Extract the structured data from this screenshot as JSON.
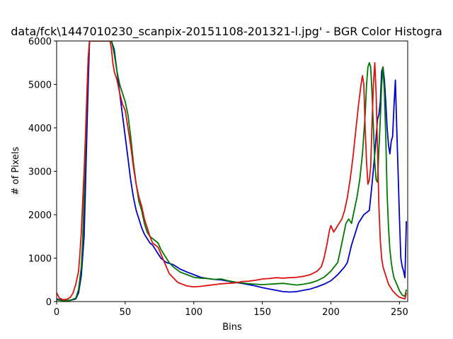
{
  "chart_data": {
    "type": "line",
    "title": "data/fck\\1447010230_scanpix-20151108-201321-l.jpg' - BGR Color Histogra",
    "xlabel": "Bins",
    "ylabel": "# of Pixels",
    "xlim": [
      0,
      256
    ],
    "ylim": [
      0,
      6000
    ],
    "xticks": [
      0,
      50,
      100,
      150,
      200,
      250
    ],
    "yticks": [
      0,
      1000,
      2000,
      3000,
      4000,
      5000,
      6000
    ],
    "grid": false,
    "legend": "none",
    "series": [
      {
        "color": "#0000cc",
        "points": [
          [
            0,
            60
          ],
          [
            5,
            20
          ],
          [
            10,
            30
          ],
          [
            14,
            60
          ],
          [
            16,
            200
          ],
          [
            18,
            600
          ],
          [
            20,
            1500
          ],
          [
            21,
            2600
          ],
          [
            22,
            3800
          ],
          [
            23,
            5000
          ],
          [
            24,
            6000
          ],
          [
            25,
            6000
          ],
          [
            40,
            6000
          ],
          [
            42,
            5800
          ],
          [
            44,
            5300
          ],
          [
            46,
            4800
          ],
          [
            48,
            4300
          ],
          [
            50,
            3800
          ],
          [
            52,
            3300
          ],
          [
            54,
            2800
          ],
          [
            56,
            2400
          ],
          [
            58,
            2100
          ],
          [
            60,
            1900
          ],
          [
            62,
            1700
          ],
          [
            64,
            1550
          ],
          [
            66,
            1450
          ],
          [
            68,
            1350
          ],
          [
            70,
            1300
          ],
          [
            72,
            1200
          ],
          [
            74,
            1100
          ],
          [
            76,
            1000
          ],
          [
            78,
            950
          ],
          [
            80,
            900
          ],
          [
            85,
            850
          ],
          [
            90,
            750
          ],
          [
            95,
            680
          ],
          [
            100,
            620
          ],
          [
            105,
            560
          ],
          [
            110,
            530
          ],
          [
            115,
            510
          ],
          [
            120,
            500
          ],
          [
            125,
            470
          ],
          [
            130,
            440
          ],
          [
            135,
            420
          ],
          [
            140,
            390
          ],
          [
            145,
            360
          ],
          [
            150,
            320
          ],
          [
            155,
            290
          ],
          [
            160,
            260
          ],
          [
            165,
            230
          ],
          [
            170,
            220
          ],
          [
            175,
            230
          ],
          [
            180,
            260
          ],
          [
            185,
            290
          ],
          [
            190,
            340
          ],
          [
            195,
            400
          ],
          [
            200,
            480
          ],
          [
            205,
            620
          ],
          [
            210,
            800
          ],
          [
            212,
            900
          ],
          [
            215,
            1300
          ],
          [
            218,
            1600
          ],
          [
            220,
            1800
          ],
          [
            222,
            1900
          ],
          [
            224,
            2000
          ],
          [
            226,
            2050
          ],
          [
            228,
            2100
          ],
          [
            229,
            2400
          ],
          [
            230,
            2700
          ],
          [
            232,
            3400
          ],
          [
            234,
            4200
          ],
          [
            235,
            4300
          ],
          [
            236,
            4600
          ],
          [
            237,
            5300
          ],
          [
            238,
            5400
          ],
          [
            239,
            5100
          ],
          [
            240,
            4600
          ],
          [
            241,
            4000
          ],
          [
            242,
            3600
          ],
          [
            243,
            3400
          ],
          [
            244,
            3700
          ],
          [
            245,
            3800
          ],
          [
            246,
            4500
          ],
          [
            247,
            5100
          ],
          [
            248,
            4000
          ],
          [
            249,
            3000
          ],
          [
            250,
            1900
          ],
          [
            251,
            1000
          ],
          [
            252,
            800
          ],
          [
            253,
            700
          ],
          [
            254,
            550
          ],
          [
            255,
            1850
          ]
        ]
      },
      {
        "color": "#007700",
        "points": [
          [
            0,
            40
          ],
          [
            5,
            20
          ],
          [
            10,
            30
          ],
          [
            14,
            80
          ],
          [
            16,
            280
          ],
          [
            18,
            800
          ],
          [
            19,
            1400
          ],
          [
            20,
            2400
          ],
          [
            21,
            3500
          ],
          [
            22,
            4600
          ],
          [
            23,
            5600
          ],
          [
            24,
            6000
          ],
          [
            40,
            6000
          ],
          [
            42,
            5700
          ],
          [
            44,
            5300
          ],
          [
            46,
            5000
          ],
          [
            48,
            4800
          ],
          [
            50,
            4600
          ],
          [
            52,
            4300
          ],
          [
            54,
            3800
          ],
          [
            56,
            3200
          ],
          [
            58,
            2700
          ],
          [
            60,
            2300
          ],
          [
            62,
            2100
          ],
          [
            64,
            1800
          ],
          [
            66,
            1600
          ],
          [
            68,
            1500
          ],
          [
            70,
            1450
          ],
          [
            72,
            1400
          ],
          [
            74,
            1350
          ],
          [
            76,
            1200
          ],
          [
            78,
            1100
          ],
          [
            80,
            1000
          ],
          [
            82,
            900
          ],
          [
            85,
            800
          ],
          [
            90,
            680
          ],
          [
            95,
            620
          ],
          [
            100,
            560
          ],
          [
            105,
            540
          ],
          [
            110,
            530
          ],
          [
            115,
            510
          ],
          [
            120,
            520
          ],
          [
            125,
            480
          ],
          [
            130,
            450
          ],
          [
            135,
            430
          ],
          [
            140,
            410
          ],
          [
            145,
            400
          ],
          [
            150,
            390
          ],
          [
            155,
            400
          ],
          [
            160,
            410
          ],
          [
            165,
            420
          ],
          [
            170,
            400
          ],
          [
            175,
            380
          ],
          [
            180,
            400
          ],
          [
            185,
            430
          ],
          [
            190,
            480
          ],
          [
            195,
            560
          ],
          [
            200,
            700
          ],
          [
            205,
            900
          ],
          [
            207,
            1200
          ],
          [
            209,
            1500
          ],
          [
            211,
            1800
          ],
          [
            213,
            1900
          ],
          [
            215,
            1800
          ],
          [
            217,
            2100
          ],
          [
            219,
            2400
          ],
          [
            221,
            2800
          ],
          [
            223,
            3400
          ],
          [
            225,
            4300
          ],
          [
            226,
            5000
          ],
          [
            227,
            5400
          ],
          [
            228,
            5500
          ],
          [
            229,
            5400
          ],
          [
            230,
            4800
          ],
          [
            231,
            4000
          ],
          [
            232,
            3200
          ],
          [
            233,
            2800
          ],
          [
            234,
            2750
          ],
          [
            235,
            3500
          ],
          [
            236,
            4200
          ],
          [
            237,
            5000
          ],
          [
            238,
            5400
          ],
          [
            239,
            4800
          ],
          [
            240,
            3800
          ],
          [
            241,
            2500
          ],
          [
            242,
            1700
          ],
          [
            243,
            1200
          ],
          [
            244,
            900
          ],
          [
            245,
            700
          ],
          [
            246,
            550
          ],
          [
            248,
            400
          ],
          [
            250,
            250
          ],
          [
            252,
            150
          ],
          [
            254,
            120
          ],
          [
            255,
            280
          ]
        ]
      },
      {
        "color": "#dd1111",
        "points": [
          [
            0,
            200
          ],
          [
            2,
            80
          ],
          [
            5,
            40
          ],
          [
            8,
            60
          ],
          [
            10,
            100
          ],
          [
            12,
            200
          ],
          [
            14,
            400
          ],
          [
            16,
            700
          ],
          [
            17,
            1100
          ],
          [
            18,
            1600
          ],
          [
            19,
            2300
          ],
          [
            20,
            3000
          ],
          [
            21,
            3800
          ],
          [
            22,
            4700
          ],
          [
            23,
            5600
          ],
          [
            24,
            6000
          ],
          [
            39,
            6000
          ],
          [
            40,
            5800
          ],
          [
            41,
            5500
          ],
          [
            42,
            5300
          ],
          [
            44,
            5100
          ],
          [
            46,
            4800
          ],
          [
            48,
            4550
          ],
          [
            50,
            4400
          ],
          [
            52,
            4000
          ],
          [
            54,
            3600
          ],
          [
            56,
            3100
          ],
          [
            58,
            2700
          ],
          [
            60,
            2400
          ],
          [
            62,
            2200
          ],
          [
            64,
            1900
          ],
          [
            66,
            1700
          ],
          [
            68,
            1500
          ],
          [
            70,
            1350
          ],
          [
            72,
            1300
          ],
          [
            74,
            1250
          ],
          [
            76,
            1100
          ],
          [
            78,
            950
          ],
          [
            80,
            800
          ],
          [
            82,
            650
          ],
          [
            85,
            550
          ],
          [
            88,
            450
          ],
          [
            90,
            420
          ],
          [
            95,
            360
          ],
          [
            100,
            340
          ],
          [
            105,
            350
          ],
          [
            110,
            370
          ],
          [
            115,
            390
          ],
          [
            120,
            410
          ],
          [
            125,
            420
          ],
          [
            130,
            430
          ],
          [
            135,
            460
          ],
          [
            140,
            470
          ],
          [
            145,
            490
          ],
          [
            150,
            520
          ],
          [
            155,
            530
          ],
          [
            160,
            550
          ],
          [
            165,
            540
          ],
          [
            170,
            550
          ],
          [
            175,
            560
          ],
          [
            180,
            580
          ],
          [
            185,
            620
          ],
          [
            190,
            700
          ],
          [
            193,
            800
          ],
          [
            195,
            1000
          ],
          [
            197,
            1300
          ],
          [
            199,
            1650
          ],
          [
            200,
            1750
          ],
          [
            202,
            1600
          ],
          [
            204,
            1700
          ],
          [
            206,
            1800
          ],
          [
            208,
            1900
          ],
          [
            210,
            2100
          ],
          [
            212,
            2400
          ],
          [
            214,
            2800
          ],
          [
            216,
            3300
          ],
          [
            218,
            3900
          ],
          [
            220,
            4500
          ],
          [
            222,
            5000
          ],
          [
            223,
            5200
          ],
          [
            224,
            5000
          ],
          [
            225,
            4000
          ],
          [
            226,
            3200
          ],
          [
            227,
            2700
          ],
          [
            228,
            2800
          ],
          [
            229,
            3100
          ],
          [
            230,
            4100
          ],
          [
            231,
            5000
          ],
          [
            232,
            5500
          ],
          [
            233,
            4800
          ],
          [
            234,
            3500
          ],
          [
            235,
            2200
          ],
          [
            236,
            1400
          ],
          [
            237,
            1000
          ],
          [
            238,
            800
          ],
          [
            240,
            600
          ],
          [
            242,
            400
          ],
          [
            245,
            250
          ],
          [
            248,
            150
          ],
          [
            250,
            100
          ],
          [
            252,
            80
          ],
          [
            254,
            60
          ],
          [
            255,
            200
          ]
        ]
      }
    ]
  }
}
